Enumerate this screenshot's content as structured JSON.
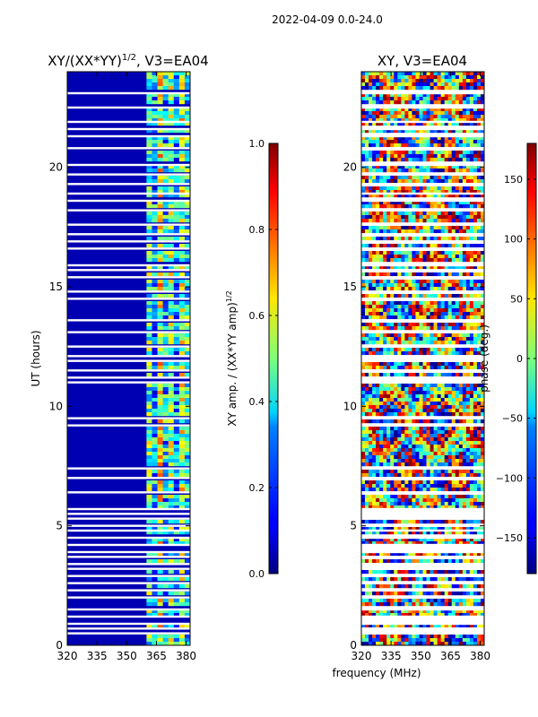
{
  "figure_title": "2022-04-09 0.0-24.0",
  "shared_xlabel": "frequency (MHz)",
  "chart_data": [
    {
      "type": "heatmap",
      "name": "amplitude-ratio",
      "title": "XY/(XX*YY)",
      "title_exponent": "1/2",
      "title_suffix": ", V3=EA04",
      "ylabel": "UT (hours)",
      "xlim": [
        320,
        382
      ],
      "ylim": [
        0,
        24
      ],
      "x_ticks": [
        320,
        335,
        350,
        365,
        380
      ],
      "y_ticks": [
        0,
        5,
        10,
        15,
        20
      ],
      "colorbar": {
        "label": "XY amp. / (XX*YY amp)",
        "label_exponent": "1/2",
        "range": [
          0.0,
          1.0
        ],
        "ticks": [
          "0.0",
          "0.2",
          "0.4",
          "0.6",
          "0.8",
          "1.0"
        ],
        "tick_values": [
          0.0,
          0.2,
          0.4,
          0.6,
          0.8,
          1.0
        ],
        "colormap": "jet"
      },
      "background_value": 0.05,
      "active_band_mhz": [
        360,
        382
      ],
      "active_band_values": [
        0.45,
        0.3,
        0.6,
        0.35,
        0.5,
        0.3,
        0.55,
        0.4
      ]
    },
    {
      "type": "heatmap",
      "name": "phase",
      "title": "XY, V3=EA04",
      "ylabel": "",
      "xlim": [
        320,
        382
      ],
      "ylim": [
        0,
        24
      ],
      "x_ticks": [
        320,
        335,
        350,
        365,
        380
      ],
      "y_ticks": [
        0,
        5,
        10,
        15,
        20
      ],
      "colorbar": {
        "label": "phase (deg.)",
        "range": [
          -180,
          180
        ],
        "ticks": [
          "−150",
          "−100",
          "−50",
          "0",
          "50",
          "100",
          "150"
        ],
        "tick_values": [
          -150,
          -100,
          -50,
          0,
          50,
          100,
          150
        ],
        "colormap": "jet"
      }
    }
  ],
  "flagged_ut_hours": [
    23.1,
    22.5,
    21.9,
    21.6,
    21.3,
    20.8,
    20.1,
    19.7,
    19.3,
    18.9,
    18.6,
    18.2,
    17.6,
    17.2,
    16.9,
    16.6,
    15.9,
    15.7,
    15.4,
    14.8,
    14.5,
    13.6,
    13.1,
    12.5,
    12.1,
    11.9,
    11.5,
    11.2,
    11.0,
    9.5,
    9.2,
    7.4,
    7.0,
    6.4,
    5.7,
    5.5,
    5.3,
    5.0,
    4.8,
    4.5,
    4.2,
    3.9,
    3.7,
    3.4,
    3.2,
    2.9,
    2.6,
    2.3,
    2.0,
    1.5,
    1.2,
    0.9,
    0.7,
    0.5
  ]
}
